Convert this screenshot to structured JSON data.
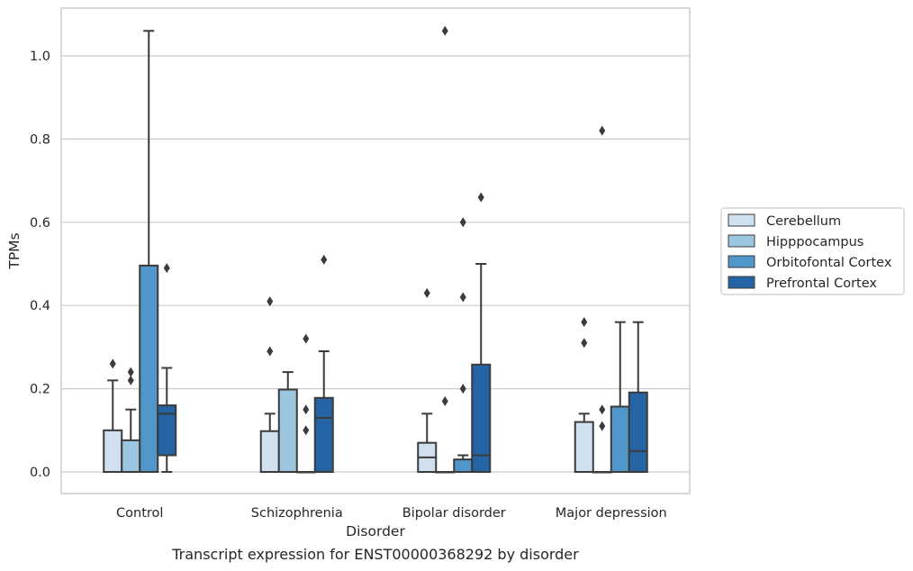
{
  "caption": "Transcript expression for ENST00000368292 by disorder",
  "chart_data": {
    "type": "box",
    "title": "",
    "xlabel": "Disorder",
    "ylabel": "TPMs",
    "ylim": [
      -0.05,
      1.12
    ],
    "yticks": [
      0.0,
      0.2,
      0.4,
      0.6,
      0.8,
      1.0
    ],
    "ytick_labels": [
      "0.0",
      "0.2",
      "0.4",
      "0.6",
      "0.8",
      "1.0"
    ],
    "grid": true,
    "legend_position": "right",
    "categories": [
      "Control",
      "Schizophrenia",
      "Bipolar disorder",
      "Major depression"
    ],
    "series": [
      {
        "name": "Cerebellum",
        "color": "#d0e0ef",
        "boxes": [
          {
            "q1": 0.0,
            "median": 0.0,
            "q3": 0.1,
            "whisker_low": 0.0,
            "whisker_high": 0.22,
            "outliers": [
              0.26
            ]
          },
          {
            "q1": 0.0,
            "median": 0.0,
            "q3": 0.098,
            "whisker_low": 0.0,
            "whisker_high": 0.14,
            "outliers": [
              0.29,
              0.41
            ]
          },
          {
            "q1": 0.0,
            "median": 0.035,
            "q3": 0.07,
            "whisker_low": 0.0,
            "whisker_high": 0.14,
            "outliers": [
              0.43
            ]
          },
          {
            "q1": 0.0,
            "median": 0.0,
            "q3": 0.12,
            "whisker_low": 0.0,
            "whisker_high": 0.14,
            "outliers": [
              0.31,
              0.36
            ]
          }
        ]
      },
      {
        "name": "Hipppocampus",
        "color": "#9cc6df",
        "boxes": [
          {
            "q1": 0.0,
            "median": 0.0,
            "q3": 0.076,
            "whisker_low": 0.0,
            "whisker_high": 0.15,
            "outliers": [
              0.22,
              0.24
            ]
          },
          {
            "q1": 0.0,
            "median": 0.0,
            "q3": 0.198,
            "whisker_low": 0.0,
            "whisker_high": 0.24,
            "outliers": []
          },
          {
            "q1": 0.0,
            "median": 0.0,
            "q3": 0.0,
            "whisker_low": 0.0,
            "whisker_high": 0.0,
            "outliers": [
              0.17,
              1.06
            ]
          },
          {
            "q1": 0.0,
            "median": 0.0,
            "q3": 0.0,
            "whisker_low": 0.0,
            "whisker_high": 0.0,
            "outliers": [
              0.11,
              0.15,
              0.82
            ]
          }
        ]
      },
      {
        "name": "Orbitofontal Cortex",
        "color": "#5096c8",
        "boxes": [
          {
            "q1": 0.0,
            "median": 0.0,
            "q3": 0.496,
            "whisker_low": 0.0,
            "whisker_high": 1.06,
            "outliers": []
          },
          {
            "q1": 0.0,
            "median": 0.0,
            "q3": 0.0,
            "whisker_low": 0.0,
            "whisker_high": 0.0,
            "outliers": [
              0.1,
              0.15,
              0.32
            ]
          },
          {
            "q1": 0.0,
            "median": 0.0,
            "q3": 0.03,
            "whisker_low": 0.0,
            "whisker_high": 0.04,
            "outliers": [
              0.2,
              0.42,
              0.6
            ]
          },
          {
            "q1": 0.0,
            "median": 0.0,
            "q3": 0.157,
            "whisker_low": 0.0,
            "whisker_high": 0.36,
            "outliers": []
          }
        ]
      },
      {
        "name": "Prefrontal Cortex",
        "color": "#2464a4",
        "boxes": [
          {
            "q1": 0.04,
            "median": 0.14,
            "q3": 0.16,
            "whisker_low": 0.0,
            "whisker_high": 0.25,
            "outliers": [
              0.49
            ]
          },
          {
            "q1": 0.0,
            "median": 0.13,
            "q3": 0.178,
            "whisker_low": 0.0,
            "whisker_high": 0.29,
            "outliers": [
              0.51
            ]
          },
          {
            "q1": 0.0,
            "median": 0.04,
            "q3": 0.258,
            "whisker_low": 0.0,
            "whisker_high": 0.5,
            "outliers": [
              0.66
            ]
          },
          {
            "q1": 0.0,
            "median": 0.05,
            "q3": 0.191,
            "whisker_low": 0.0,
            "whisker_high": 0.36,
            "outliers": []
          }
        ]
      }
    ]
  }
}
